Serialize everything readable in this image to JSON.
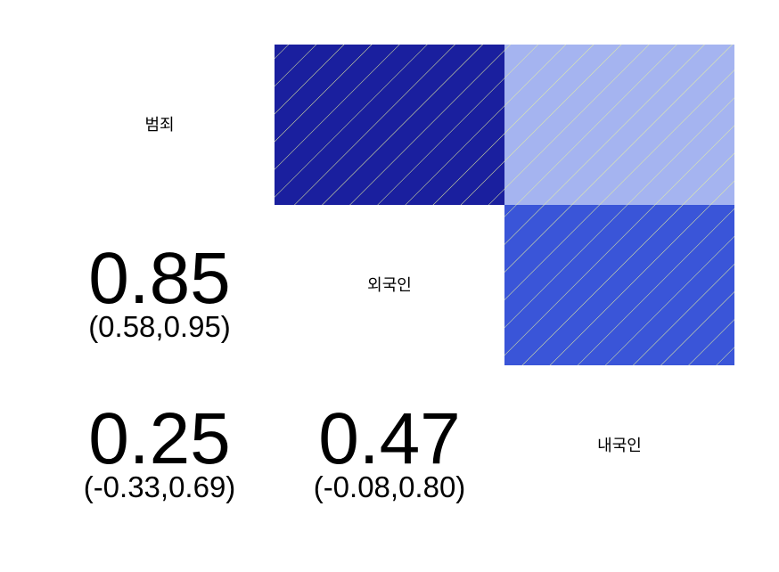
{
  "chart_data": {
    "type": "heatmap",
    "variables": [
      "범죄",
      "외국인",
      "내국인"
    ],
    "correlations": [
      {
        "row": 1,
        "col": 0,
        "value": 0.85,
        "ci_label": "(0.58,0.95)",
        "value_label": "0.85",
        "color": "#1A1F9E"
      },
      {
        "row": 2,
        "col": 0,
        "value": 0.25,
        "ci_label": "(-0.33,0.69)",
        "value_label": "0.25",
        "color": "#A5B4F0"
      },
      {
        "row": 2,
        "col": 1,
        "value": 0.47,
        "ci_label": "(-0.08,0.80)",
        "value_label": "0.47",
        "color": "#3A55D8"
      }
    ],
    "hatch_color": "#E5EFA0"
  }
}
